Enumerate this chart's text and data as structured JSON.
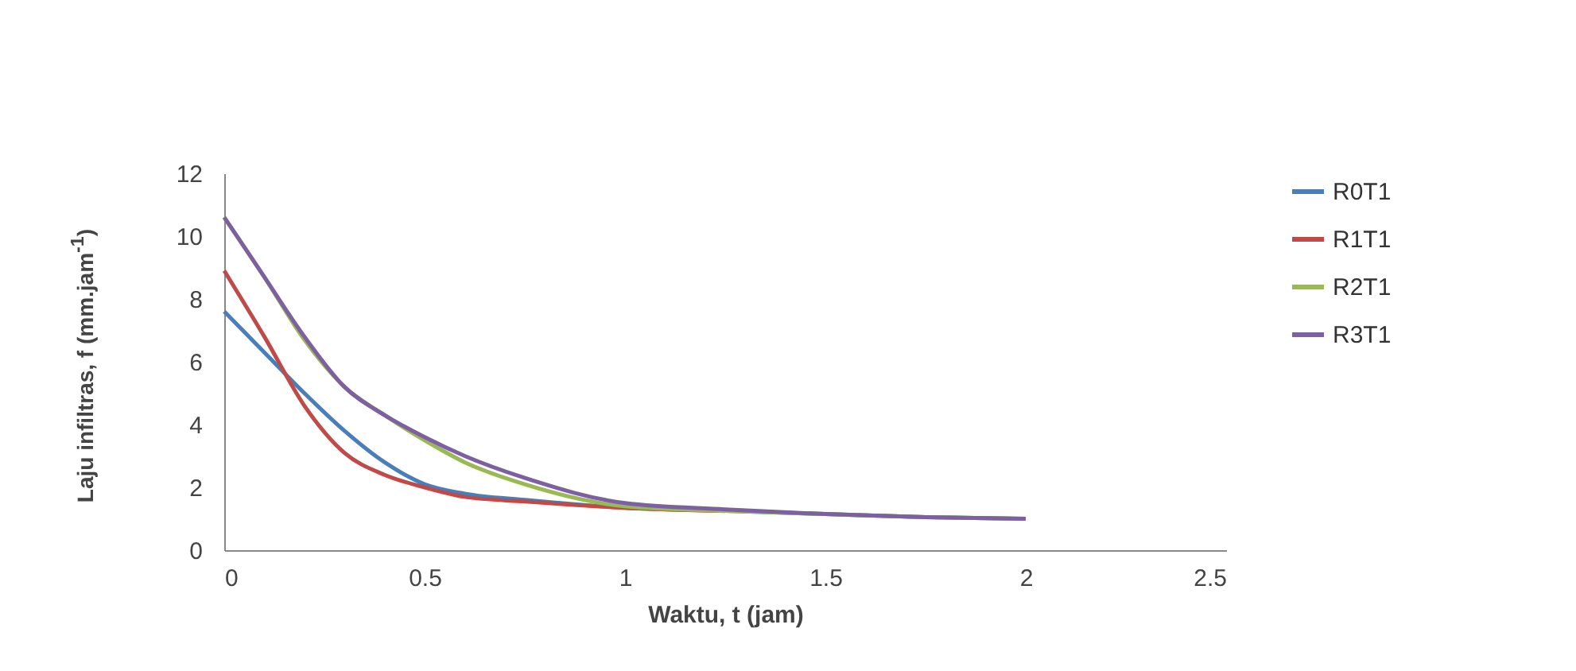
{
  "chart_data": {
    "type": "line",
    "xlabel": "Waktu, t (jam)",
    "ylabel": "Laju infiltras, f (mm.jam$^{-1}$)",
    "x": [
      0,
      0.1,
      0.2,
      0.3,
      0.4,
      0.5,
      0.6,
      0.75,
      1,
      1.25,
      1.5,
      1.75,
      2
    ],
    "series": [
      {
        "name": "R0T1",
        "color": "#4a7ebb",
        "values": [
          7.6,
          6.3,
          5.0,
          3.8,
          2.8,
          2.1,
          1.8,
          1.6,
          1.35,
          1.25,
          1.15,
          1.05,
          1.0
        ]
      },
      {
        "name": "R1T1",
        "color": "#be4b48",
        "values": [
          8.9,
          6.8,
          4.6,
          3.1,
          2.4,
          2.0,
          1.7,
          1.55,
          1.35,
          1.25,
          null,
          null,
          null
        ]
      },
      {
        "name": "R2T1",
        "color": "#98b954",
        "values": [
          10.6,
          8.7,
          6.7,
          5.2,
          4.3,
          3.5,
          2.8,
          2.1,
          1.4,
          1.25,
          1.15,
          1.05,
          1.0
        ]
      },
      {
        "name": "R3T1",
        "color": "#7d60a0",
        "values": [
          10.6,
          8.7,
          6.8,
          5.2,
          4.3,
          3.6,
          3.0,
          2.3,
          1.5,
          1.3,
          1.15,
          1.05,
          1.0
        ]
      }
    ],
    "xlim": [
      0,
      2.5
    ],
    "xticks": [
      0,
      0.5,
      1,
      1.5,
      2,
      2.5
    ],
    "ylim": [
      0,
      12
    ],
    "yticks": [
      0,
      2,
      4,
      6,
      8,
      10,
      12
    ],
    "grid": false,
    "legend": "right",
    "marker": "none",
    "line_style": "solid"
  }
}
